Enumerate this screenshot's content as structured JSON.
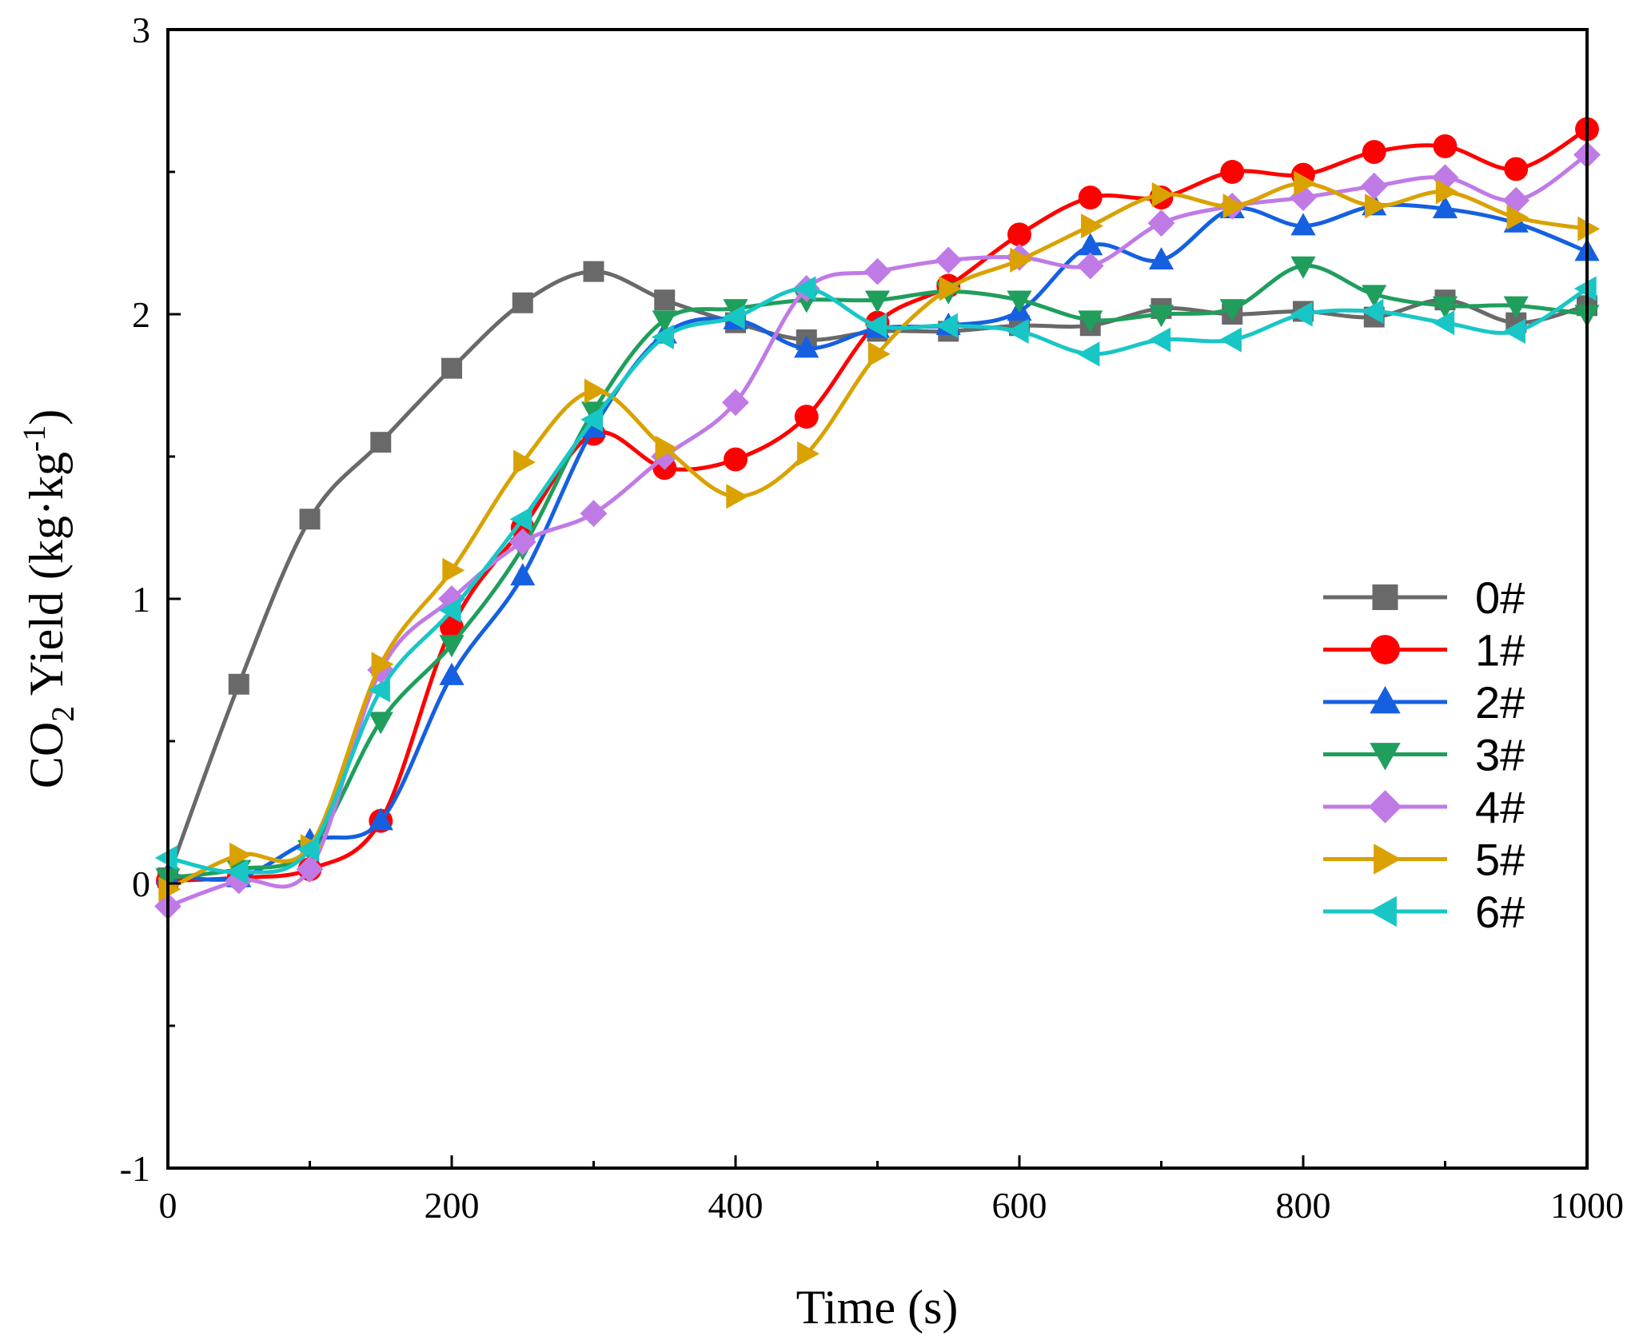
{
  "chart_data": {
    "type": "line",
    "title": "",
    "xlabel": "Time (s)",
    "ylabel": {
      "prefix": "CO",
      "sub": "2",
      "mid": " Yield (kg·kg",
      "sup": "-1",
      "suffix": ")"
    },
    "xlim": [
      0,
      1000
    ],
    "ylim": [
      -1,
      3
    ],
    "xticks": [
      0,
      200,
      400,
      600,
      800,
      1000
    ],
    "xtick_labels": [
      "0",
      "200",
      "400",
      "600",
      "800",
      "1000"
    ],
    "yticks": [
      -1,
      0,
      1,
      2,
      3
    ],
    "ytick_labels": [
      "-1",
      "0",
      "1",
      "2",
      "3"
    ],
    "grid": false,
    "legend_position": "right-middle",
    "x": [
      0,
      50,
      100,
      150,
      200,
      250,
      300,
      350,
      400,
      450,
      500,
      550,
      600,
      650,
      700,
      750,
      800,
      850,
      900,
      950,
      1000
    ],
    "series": [
      {
        "name": "0#",
        "color": "#696969",
        "marker": "square",
        "values": [
          0.02,
          0.7,
          1.28,
          1.55,
          1.81,
          2.04,
          2.15,
          2.05,
          1.97,
          1.91,
          1.94,
          1.94,
          1.96,
          1.96,
          2.02,
          2.0,
          2.01,
          1.99,
          2.05,
          1.97,
          2.03
        ]
      },
      {
        "name": "1#",
        "color": "#ff0000",
        "marker": "circle",
        "values": [
          0.01,
          0.02,
          0.05,
          0.22,
          0.9,
          1.25,
          1.58,
          1.46,
          1.49,
          1.64,
          1.97,
          2.1,
          2.28,
          2.41,
          2.41,
          2.5,
          2.49,
          2.57,
          2.59,
          2.51,
          2.65
        ]
      },
      {
        "name": "2#",
        "color": "#1560e0",
        "marker": "triangle-up",
        "values": [
          0.03,
          0.02,
          0.15,
          0.22,
          0.73,
          1.08,
          1.6,
          1.93,
          1.98,
          1.88,
          1.95,
          1.96,
          2.01,
          2.24,
          2.19,
          2.37,
          2.31,
          2.38,
          2.37,
          2.32,
          2.22
        ]
      },
      {
        "name": "3#",
        "color": "#1f9e5c",
        "marker": "triangle-down",
        "values": [
          0.02,
          0.05,
          0.12,
          0.57,
          0.84,
          1.18,
          1.66,
          1.98,
          2.02,
          2.05,
          2.05,
          2.08,
          2.05,
          1.98,
          2.0,
          2.02,
          2.17,
          2.07,
          2.03,
          2.03,
          2.0
        ]
      },
      {
        "name": "4#",
        "color": "#c07ae6",
        "marker": "diamond",
        "values": [
          -0.08,
          0.01,
          0.05,
          0.75,
          1.0,
          1.2,
          1.3,
          1.5,
          1.69,
          2.09,
          2.15,
          2.19,
          2.2,
          2.17,
          2.32,
          2.38,
          2.41,
          2.45,
          2.48,
          2.4,
          2.56
        ]
      },
      {
        "name": "5#",
        "color": "#d9a200",
        "marker": "triangle-right",
        "values": [
          -0.02,
          0.1,
          0.13,
          0.77,
          1.1,
          1.48,
          1.73,
          1.53,
          1.36,
          1.51,
          1.86,
          2.09,
          2.19,
          2.31,
          2.42,
          2.38,
          2.46,
          2.38,
          2.43,
          2.34,
          2.3
        ]
      },
      {
        "name": "6#",
        "color": "#19c6c6",
        "marker": "triangle-left",
        "values": [
          0.09,
          0.04,
          0.12,
          0.68,
          0.96,
          1.28,
          1.63,
          1.92,
          1.99,
          2.09,
          1.96,
          1.96,
          1.94,
          1.86,
          1.91,
          1.91,
          2.0,
          2.01,
          1.97,
          1.94,
          2.09
        ]
      }
    ]
  }
}
